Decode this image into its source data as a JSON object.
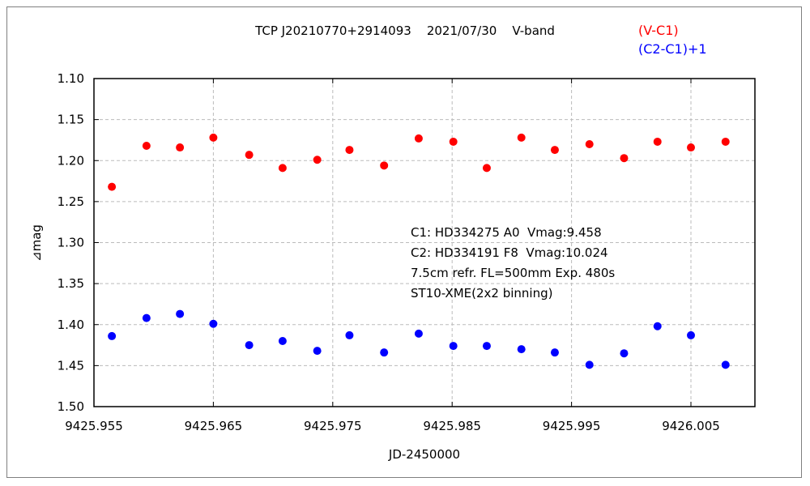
{
  "chart_data": {
    "type": "scatter",
    "title": "TCP J20210770+2914093    2021/07/30    V-band",
    "xlabel": "JD-2450000",
    "ylabel": "⊿mag",
    "xlim": [
      9425.955,
      9426.0105
    ],
    "ylim": [
      1.1,
      1.5
    ],
    "y_inverted": true,
    "grid": true,
    "x_ticks": [
      9425.955,
      9425.965,
      9425.975,
      9425.985,
      9425.995,
      9426.005
    ],
    "x_tick_labels": [
      "9425.955",
      "9425.965",
      "9425.975",
      "9425.985",
      "9425.995",
      "9426.005"
    ],
    "y_ticks": [
      1.1,
      1.15,
      1.2,
      1.25,
      1.3,
      1.35,
      1.4,
      1.45,
      1.5
    ],
    "y_tick_labels": [
      "1.10",
      "1.15",
      "1.20",
      "1.25",
      "1.30",
      "1.35",
      "1.40",
      "1.45",
      "1.50"
    ],
    "legend_placement": "top-right",
    "x": [
      9425.9565,
      9425.9594,
      9425.9622,
      9425.965,
      9425.968,
      9425.9708,
      9425.9737,
      9425.9764,
      9425.9793,
      9425.9822,
      9425.9851,
      9425.9879,
      9425.9908,
      9425.9936,
      9425.9965,
      9425.9994,
      9426.0022,
      9426.005,
      9426.0079
    ],
    "series": [
      {
        "name": "(V-C1)",
        "color": "#ff0000",
        "values": [
          1.232,
          1.182,
          1.184,
          1.172,
          1.193,
          1.209,
          1.199,
          1.187,
          1.206,
          1.173,
          1.177,
          1.209,
          1.172,
          1.187,
          1.18,
          1.197,
          1.177,
          1.184,
          1.177
        ]
      },
      {
        "name": "(C2-C1)+1",
        "color": "#0000ff",
        "values": [
          1.414,
          1.392,
          1.387,
          1.399,
          1.425,
          1.42,
          1.432,
          1.413,
          1.434,
          1.411,
          1.426,
          1.426,
          1.43,
          1.434,
          1.449,
          1.435,
          1.402,
          1.413,
          1.449
        ]
      }
    ],
    "annotations": [
      "C1: HD334275 A0  Vmag:9.458",
      "C2: HD334191 F8  Vmag:10.024",
      "7.5cm refr. FL=500mm Exp. 480s",
      "ST10-XME(2x2 binning)"
    ]
  }
}
